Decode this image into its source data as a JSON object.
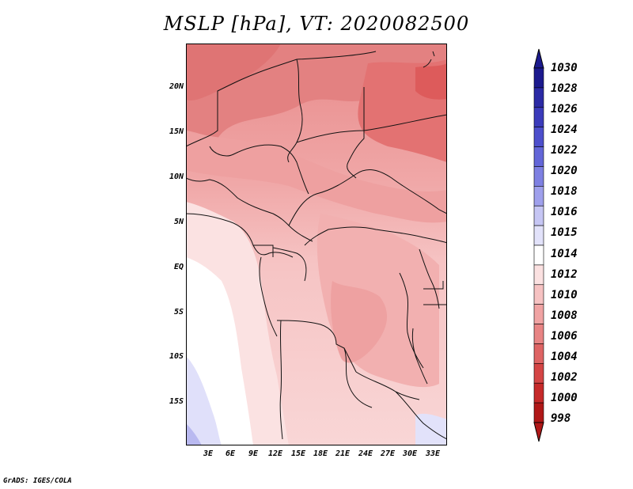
{
  "title": "MSLP [hPa], VT: 2020082500",
  "lat_labels": [
    "20N",
    "15N",
    "10N",
    "5N",
    "EQ",
    "5S",
    "10S",
    "15S"
  ],
  "lon_labels": [
    "3E",
    "6E",
    "9E",
    "12E",
    "15E",
    "18E",
    "21E",
    "24E",
    "27E",
    "30E",
    "33E"
  ],
  "colorbar": {
    "labels": [
      "1030",
      "1028",
      "1026",
      "1024",
      "1022",
      "1020",
      "1018",
      "1016",
      "1015",
      "1014",
      "1012",
      "1010",
      "1008",
      "1006",
      "1004",
      "1002",
      "1000",
      "998"
    ],
    "colors": [
      "#1c1a8e",
      "#2b2aa5",
      "#3b3bbb",
      "#4d4fcc",
      "#6366d8",
      "#7e80e2",
      "#9fa0ec",
      "#c6c6f4",
      "#e2e2fa",
      "#ffffff",
      "#fbe1e1",
      "#f6c2c2",
      "#f0a3a3",
      "#e88484",
      "#de6464",
      "#d44545",
      "#c62a2a",
      "#b01818"
    ]
  },
  "footer": "GrADS: IGES/COLA"
}
